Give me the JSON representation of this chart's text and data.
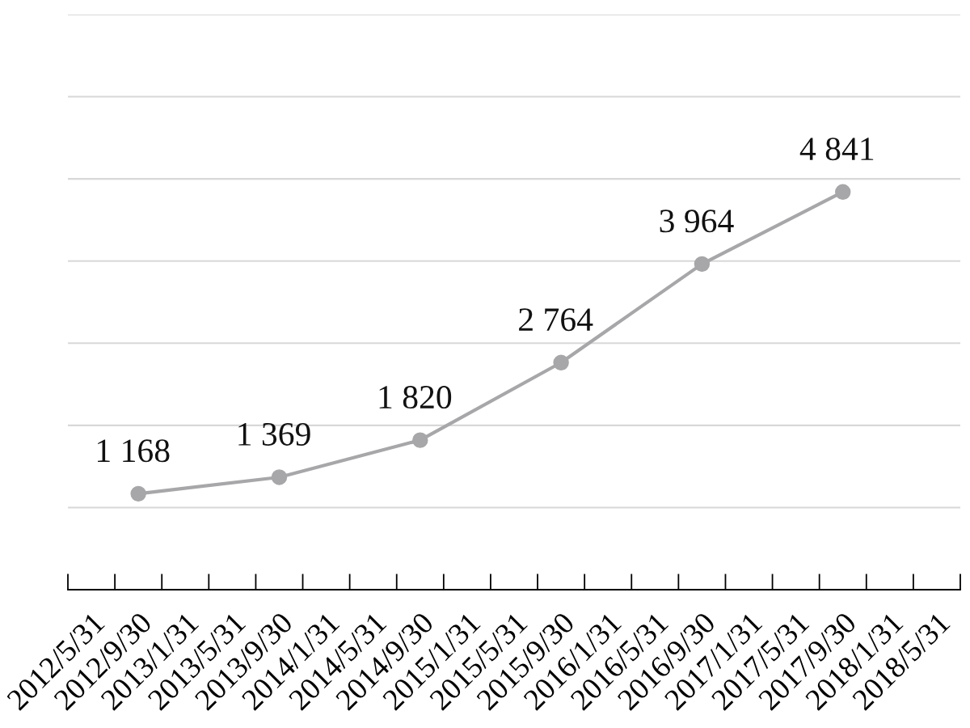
{
  "chart_data": {
    "type": "line",
    "categories": [
      "2012/5/31",
      "2012/9/30",
      "2013/1/31",
      "2013/5/31",
      "2013/9/30",
      "2014/1/31",
      "2014/5/31",
      "2014/9/30",
      "2015/1/31",
      "2015/5/31",
      "2015/9/30",
      "2016/1/31",
      "2016/5/31",
      "2016/9/30",
      "2017/1/31",
      "2017/5/31",
      "2017/9/30",
      "2018/1/31",
      "2018/5/31"
    ],
    "series": [
      {
        "color": "#a7a7a9",
        "values": [
          null,
          1168,
          null,
          null,
          1369,
          null,
          null,
          1820,
          null,
          null,
          2764,
          null,
          null,
          3964,
          null,
          null,
          4841,
          null,
          null
        ],
        "value_labels": [
          null,
          "1 168",
          null,
          null,
          "1 369",
          null,
          null,
          "1 820",
          null,
          null,
          "2 764",
          null,
          null,
          "3 964",
          null,
          null,
          "4 841",
          null,
          null
        ]
      }
    ],
    "ylim": [
      0,
      7000
    ],
    "yticks": [
      {
        "value": 1000,
        "label": null
      },
      {
        "value": 2000,
        "label": null
      },
      {
        "value": 3000,
        "label": null
      },
      {
        "value": 4000,
        "label": null
      },
      {
        "value": 5000,
        "label": null
      },
      {
        "value": 6000,
        "label": null
      },
      {
        "value": 7000,
        "label": null
      }
    ],
    "tick_labels": "x",
    "grid": "y",
    "legend": false,
    "marker": "circle",
    "line_style": "solid"
  }
}
